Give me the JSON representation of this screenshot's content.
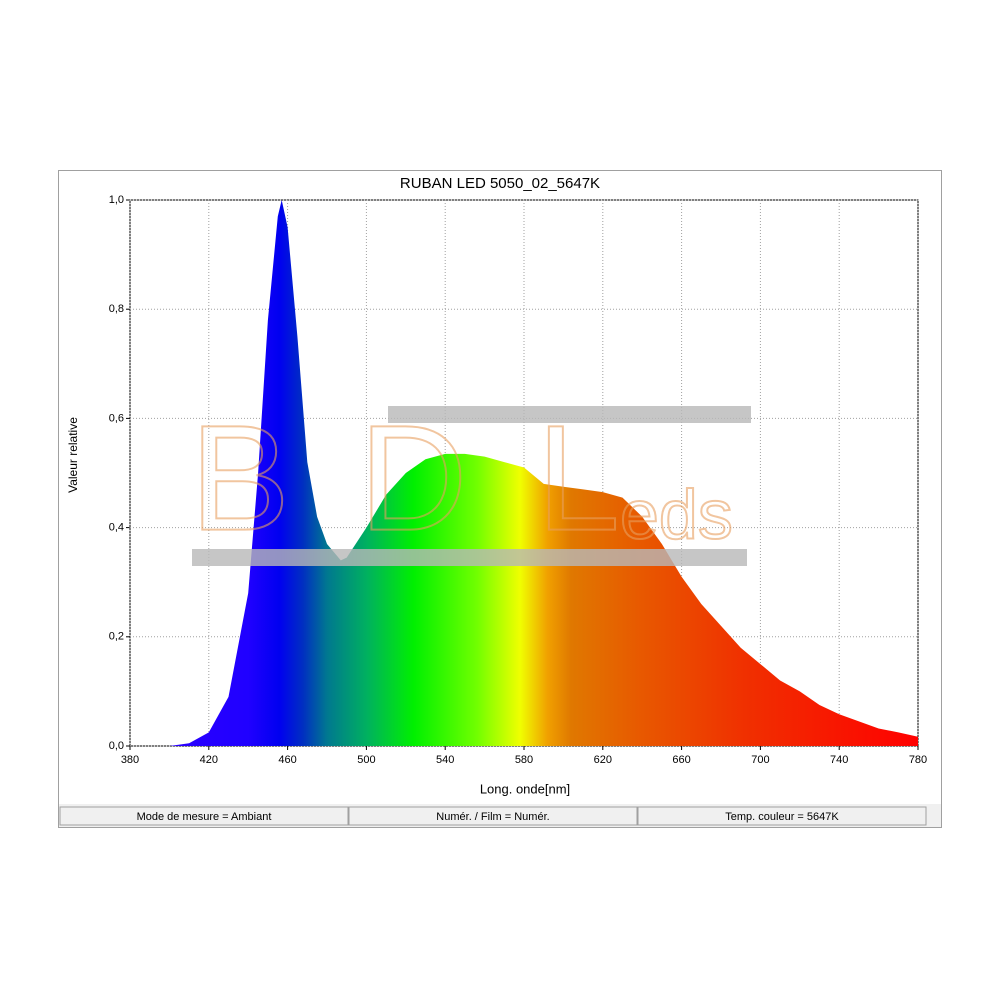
{
  "chart_data": {
    "type": "area",
    "title": "RUBAN LED 5050_02_5647K",
    "x_label": "Long. onde[nm]",
    "y_label": "Valeur relative",
    "watermark": [
      "BDL",
      "eds"
    ],
    "x": [
      380,
      400,
      410,
      420,
      430,
      440,
      445,
      450,
      455,
      457,
      460,
      465,
      470,
      475,
      480,
      487,
      490,
      500,
      510,
      520,
      530,
      540,
      550,
      560,
      570,
      580,
      590,
      600,
      610,
      620,
      630,
      640,
      650,
      660,
      670,
      680,
      690,
      700,
      710,
      720,
      730,
      740,
      750,
      760,
      770,
      780
    ],
    "values": [
      0,
      0,
      0.005,
      0.025,
      0.09,
      0.28,
      0.5,
      0.78,
      0.97,
      1.0,
      0.95,
      0.75,
      0.52,
      0.42,
      0.37,
      0.34,
      0.345,
      0.4,
      0.46,
      0.5,
      0.525,
      0.535,
      0.535,
      0.53,
      0.52,
      0.51,
      0.48,
      0.475,
      0.47,
      0.465,
      0.455,
      0.42,
      0.37,
      0.31,
      0.26,
      0.22,
      0.18,
      0.15,
      0.12,
      0.1,
      0.075,
      0.058,
      0.045,
      0.032,
      0.025,
      0.017
    ],
    "xlim": [
      380,
      780
    ],
    "ylim": [
      0,
      1
    ],
    "xticks": [
      380,
      420,
      460,
      500,
      540,
      580,
      620,
      660,
      700,
      740,
      780
    ],
    "yticks": [
      {
        "value": 0,
        "label": "0,0"
      },
      {
        "value": 0.2,
        "label": "0,2"
      },
      {
        "value": 0.4,
        "label": "0,4"
      },
      {
        "value": 0.6,
        "label": "0,6"
      },
      {
        "value": 0.8,
        "label": "0,8"
      },
      {
        "value": 1,
        "label": "1,0"
      }
    ],
    "grid": true
  },
  "status_bar": [
    "Mode de mesure = Ambiant",
    "Numér. / Film = Numér.",
    "Temp. couleur = 5647K"
  ]
}
